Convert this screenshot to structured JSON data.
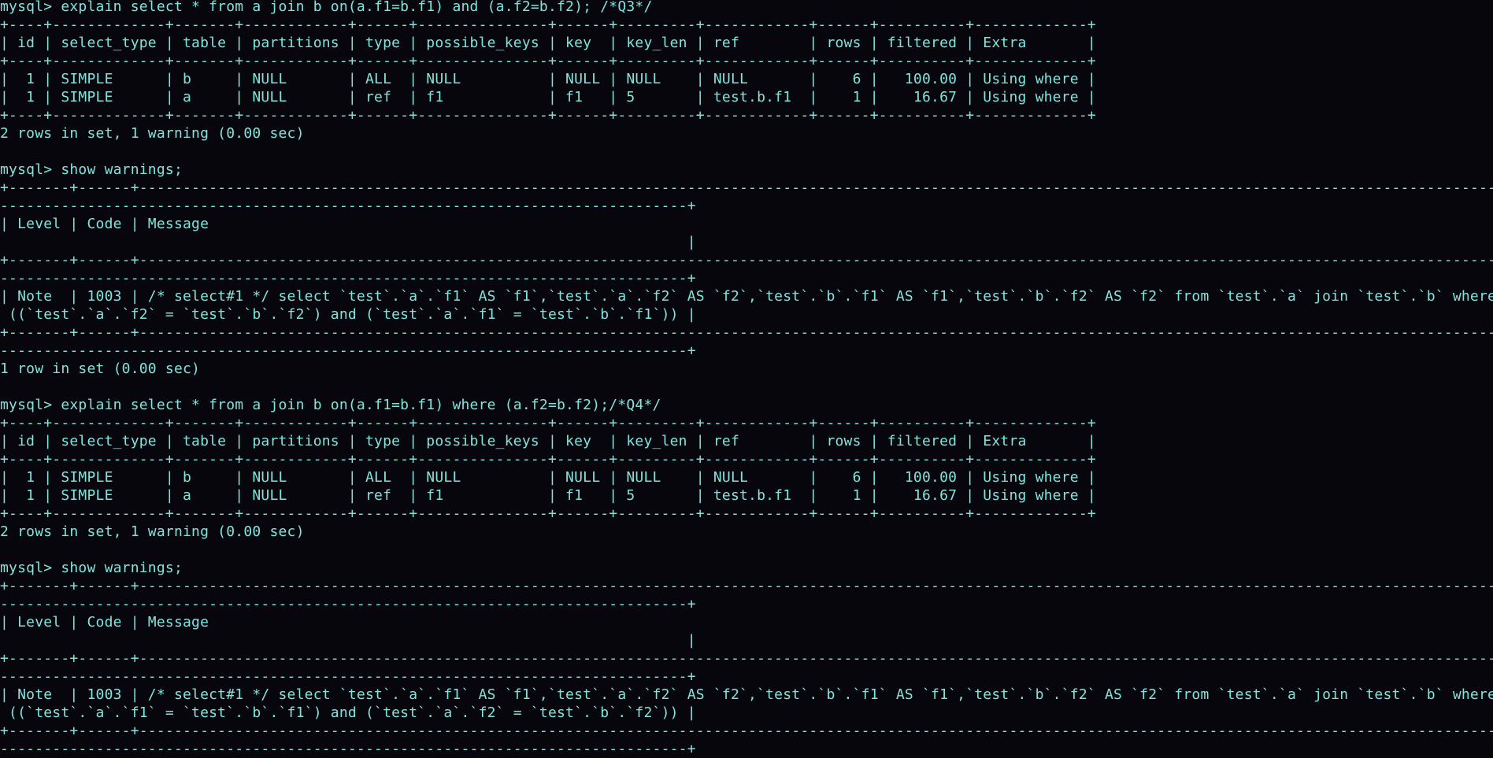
{
  "terminal": {
    "prompt": "mysql> ",
    "colors": {
      "background": "#07060c",
      "text": "#80e4dd"
    },
    "blocks": [
      {
        "command": "explain select * from a join b on(a.f1=b.f1) and (a.f2=b.f2); /*Q3*/",
        "type": "explain",
        "columns": [
          "id",
          "select_type",
          "table",
          "partitions",
          "type",
          "possible_keys",
          "key",
          "key_len",
          "ref",
          "rows",
          "filtered",
          "Extra"
        ],
        "rows": [
          [
            "1",
            "SIMPLE",
            "b",
            "NULL",
            "ALL",
            "NULL",
            "NULL",
            "NULL",
            "NULL",
            "6",
            "100.00",
            "Using where"
          ],
          [
            "1",
            "SIMPLE",
            "a",
            "NULL",
            "ref",
            "f1",
            "f1",
            "5",
            "test.b.f1",
            "1",
            "16.67",
            "Using where"
          ]
        ],
        "status": "2 rows in set, 1 warning (0.00 sec)"
      },
      {
        "command": "show warnings;",
        "type": "warnings",
        "columns": [
          "Level",
          "Code",
          "Message"
        ],
        "rows": [
          [
            "Note",
            "1003",
            "/* select#1 */ select `test`.`a`.`f1` AS `f1`,`test`.`a`.`f2` AS `f2`,`test`.`b`.`f1` AS `f1`,`test`.`b`.`f2` AS `f2` from `test`.`a` join `test`.`b` where ((`test`.`a`.`f2` = `test`.`b`.`f2`) and (`test`.`a`.`f1` = `test`.`b`.`f1`))"
          ]
        ],
        "status": "1 row in set (0.00 sec)"
      },
      {
        "command": "explain select * from a join b on(a.f1=b.f1) where (a.f2=b.f2);/*Q4*/",
        "type": "explain",
        "columns": [
          "id",
          "select_type",
          "table",
          "partitions",
          "type",
          "possible_keys",
          "key",
          "key_len",
          "ref",
          "rows",
          "filtered",
          "Extra"
        ],
        "rows": [
          [
            "1",
            "SIMPLE",
            "b",
            "NULL",
            "ALL",
            "NULL",
            "NULL",
            "NULL",
            "NULL",
            "6",
            "100.00",
            "Using where"
          ],
          [
            "1",
            "SIMPLE",
            "a",
            "NULL",
            "ref",
            "f1",
            "f1",
            "5",
            "test.b.f1",
            "1",
            "16.67",
            "Using where"
          ]
        ],
        "status": "2 rows in set, 1 warning (0.00 sec)"
      },
      {
        "command": "show warnings;",
        "type": "warnings",
        "columns": [
          "Level",
          "Code",
          "Message"
        ],
        "rows": [
          [
            "Note",
            "1003",
            "/* select#1 */ select `test`.`a`.`f1` AS `f1`,`test`.`a`.`f2` AS `f2`,`test`.`b`.`f1` AS `f1`,`test`.`b`.`f2` AS `f2` from `test`.`a` join `test`.`b` where ((`test`.`a`.`f1` = `test`.`b`.`f1`) and (`test`.`a`.`f2` = `test`.`b`.`f2`))"
          ]
        ],
        "status": null
      }
    ]
  }
}
